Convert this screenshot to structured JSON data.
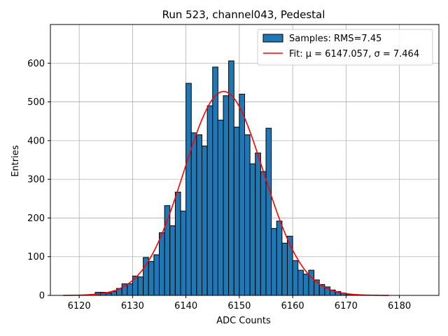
{
  "chart_data": {
    "type": "bar",
    "title": "Run 523, channel043, Pedestal",
    "xlabel": "ADC Counts",
    "ylabel": "Entries",
    "xlim": [
      6114.6,
      6187.4
    ],
    "ylim": [
      0,
      700
    ],
    "xticks": [
      6120,
      6130,
      6140,
      6150,
      6160,
      6170,
      6180
    ],
    "yticks": [
      0,
      100,
      200,
      300,
      400,
      500,
      600
    ],
    "grid": true,
    "legend_position": "top-right",
    "bar_color": "#1f77b4",
    "fit_color": "#ff0000",
    "histogram": {
      "name": "Samples: RMS=7.45",
      "bin_width": 1,
      "bin_starts": [
        6123,
        6124,
        6125,
        6126,
        6127,
        6128,
        6129,
        6130,
        6131,
        6132,
        6133,
        6134,
        6135,
        6136,
        6137,
        6138,
        6139,
        6140,
        6141,
        6142,
        6143,
        6144,
        6145,
        6146,
        6147,
        6148,
        6149,
        6150,
        6151,
        6152,
        6153,
        6154,
        6155,
        6156,
        6157,
        6158,
        6159,
        6160,
        6161,
        6162,
        6163,
        6164,
        6165,
        6166,
        6167,
        6168,
        6169,
        6170,
        6171,
        6172
      ],
      "counts": [
        8,
        8,
        6,
        10,
        18,
        30,
        30,
        50,
        48,
        98,
        88,
        105,
        162,
        232,
        180,
        267,
        218,
        548,
        420,
        415,
        386,
        490,
        590,
        453,
        516,
        606,
        435,
        520,
        415,
        340,
        368,
        320,
        432,
        173,
        192,
        135,
        153,
        90,
        65,
        55,
        65,
        40,
        28,
        22,
        14,
        10,
        6,
        3,
        2,
        1
      ]
    },
    "fit": {
      "name": "Fit: μ = 6147.057, σ = 7.464",
      "mu": 6147.057,
      "sigma": 7.464,
      "amplitude": 527,
      "x_range": [
        6117,
        6178
      ]
    }
  }
}
